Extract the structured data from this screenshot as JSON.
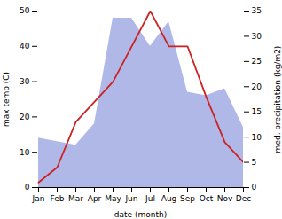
{
  "chart_data": {
    "type": "line",
    "categories": [
      "Jan",
      "Feb",
      "Mar",
      "Apr",
      "May",
      "Jun",
      "Jul",
      "Aug",
      "Sep",
      "Oct",
      "Nov",
      "Dec"
    ],
    "xlabel": "date (month)",
    "ylabel": "max temp (C)",
    "y2label": "med. precipitation (kg/m2)",
    "ylim": [
      0,
      50
    ],
    "yticks": [
      0,
      10,
      20,
      30,
      40,
      50
    ],
    "y2lim": [
      0,
      35
    ],
    "y2ticks": [
      0,
      5,
      10,
      15,
      20,
      25,
      30,
      35
    ],
    "series": [
      {
        "type": "area",
        "color": "#b0b8e8",
        "values": [
          14,
          13,
          12,
          18,
          48,
          48,
          40,
          47,
          27,
          26,
          28,
          17
        ]
      },
      {
        "type": "line",
        "color": "#cc2222",
        "axis": "y2",
        "values": [
          1,
          4,
          13,
          17,
          21,
          28,
          35,
          28,
          28,
          18,
          9,
          5
        ]
      }
    ]
  }
}
